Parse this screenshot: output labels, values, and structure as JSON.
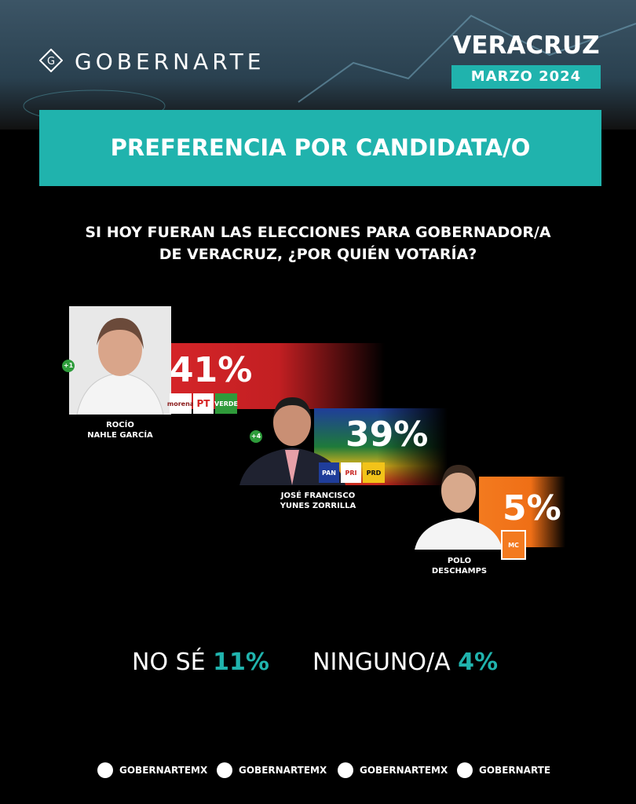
{
  "header": {
    "brand": "GOBERNARTE",
    "state": "VERACRUZ",
    "date": "MARZO 2024"
  },
  "banner": "PREFERENCIA POR CANDIDATA/O",
  "question": [
    "SI HOY FUERAN LAS ELECCIONES PARA GOBERNADOR/A",
    "DE VERACRUZ, ¿POR QUIÉN VOTARÍA?"
  ],
  "candidates": [
    {
      "name": [
        "ROCÍO",
        "NAHLE GARCÍA"
      ],
      "result": "41%",
      "change": "+1",
      "parties": [
        "morena",
        "PT",
        "VERDE"
      ]
    },
    {
      "name": [
        "JOSÉ FRANCISCO",
        "YUNES ZORRILLA"
      ],
      "result": "39%",
      "change": "+4",
      "parties": [
        "PAN",
        "PRI",
        "PRD"
      ]
    },
    {
      "name": [
        "POLO",
        "DESCHAMPS"
      ],
      "result": "5%",
      "parties": [
        "MC"
      ]
    }
  ],
  "others": [
    {
      "label": "NO SÉ",
      "result": "11%"
    },
    {
      "label": "NINGUNO/A",
      "result": "4%"
    }
  ],
  "footer": {
    "social": [
      "GOBERNARTEMX",
      "GOBERNARTEMX",
      "GOBERNARTEMX",
      "GOBERNARTE"
    ]
  }
}
